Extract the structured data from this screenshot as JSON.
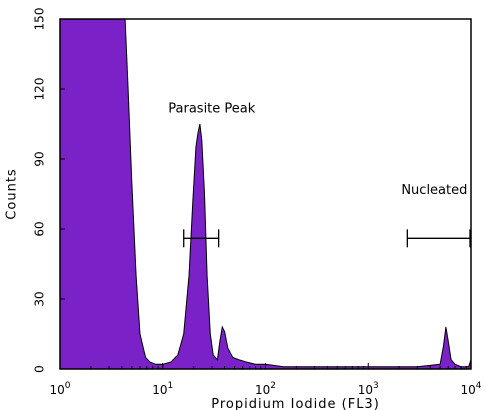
{
  "chart_data": {
    "type": "area",
    "title": "",
    "xlabel": "Propidium Iodide (FL3)",
    "ylabel": "Counts",
    "xscale": "log",
    "xlim": [
      1,
      10000
    ],
    "ylim": [
      0,
      150
    ],
    "x_ticks": [
      {
        "base": "10",
        "exp": "0",
        "value": 1
      },
      {
        "base": "10",
        "exp": "1",
        "value": 10
      },
      {
        "base": "10",
        "exp": "2",
        "value": 100
      },
      {
        "base": "10",
        "exp": "3",
        "value": 1000
      },
      {
        "base": "10",
        "exp": "4",
        "value": 10000
      }
    ],
    "y_ticks": [
      "0",
      "30",
      "60",
      "90",
      "120",
      "150"
    ],
    "fill_color": "#7a22c8",
    "series": [
      {
        "values": [
          [
            1.0,
            150
          ],
          [
            4.3,
            150
          ],
          [
            4.6,
            120
          ],
          [
            5.0,
            80
          ],
          [
            5.5,
            40
          ],
          [
            6.0,
            15
          ],
          [
            6.8,
            5
          ],
          [
            7.5,
            3
          ],
          [
            8.5,
            2
          ],
          [
            10,
            2
          ],
          [
            12,
            3
          ],
          [
            14,
            6
          ],
          [
            16,
            15
          ],
          [
            18,
            40
          ],
          [
            19.5,
            70
          ],
          [
            21,
            95
          ],
          [
            22,
            101
          ],
          [
            23,
            105
          ],
          [
            24,
            98
          ],
          [
            25.5,
            75
          ],
          [
            27,
            40
          ],
          [
            29,
            15
          ],
          [
            31,
            6
          ],
          [
            34,
            4
          ],
          [
            36,
            12
          ],
          [
            38,
            18
          ],
          [
            40,
            16
          ],
          [
            43,
            9
          ],
          [
            48,
            5
          ],
          [
            55,
            4
          ],
          [
            65,
            3
          ],
          [
            80,
            2
          ],
          [
            100,
            2
          ],
          [
            150,
            1
          ],
          [
            300,
            1
          ],
          [
            1000,
            1
          ],
          [
            3000,
            1
          ],
          [
            5000,
            2
          ],
          [
            5400,
            10
          ],
          [
            5700,
            18
          ],
          [
            6000,
            12
          ],
          [
            6400,
            4
          ],
          [
            7000,
            2
          ],
          [
            8000,
            1
          ],
          [
            9500,
            1
          ],
          [
            10000,
            4
          ]
        ]
      }
    ],
    "annotations": [
      {
        "text": "Parasite Peak",
        "x": 30,
        "y": 110
      },
      {
        "text": "Nucleated",
        "x": 4400,
        "y": 75
      }
    ],
    "gates": [
      {
        "x_from": 16,
        "x_to": 35,
        "y": 56
      },
      {
        "x_from": 2400,
        "x_to": 10000,
        "y": 56
      }
    ]
  }
}
